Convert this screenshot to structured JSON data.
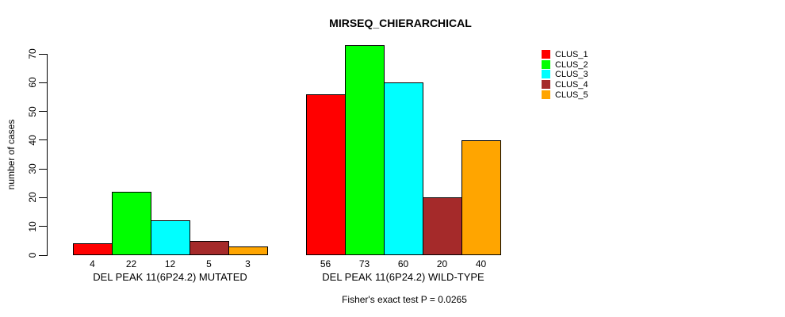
{
  "chart_data": {
    "type": "bar",
    "title": "MIRSEQ_CHIERARCHICAL",
    "subtitle": "Fisher's exact test P = 0.0265",
    "ylabel": "number of cases",
    "xlabel": "",
    "ylim": [
      0,
      70
    ],
    "yticks": [
      0,
      10,
      20,
      30,
      40,
      50,
      60,
      70
    ],
    "grid": false,
    "legend_position": "right",
    "bar_value_labels_shown": true,
    "categories": [
      "DEL PEAK 11(6P24.2) MUTATED",
      "DEL PEAK 11(6P24.2) WILD-TYPE"
    ],
    "series": [
      {
        "name": "CLUS_1",
        "color": "#FF0000",
        "values": [
          4,
          56
        ]
      },
      {
        "name": "CLUS_2",
        "color": "#00FF00",
        "values": [
          22,
          73
        ]
      },
      {
        "name": "CLUS_3",
        "color": "#00FFFF",
        "values": [
          12,
          60
        ]
      },
      {
        "name": "CLUS_4",
        "color": "#A52A2A",
        "values": [
          5,
          20
        ]
      },
      {
        "name": "CLUS_5",
        "color": "#FFA500",
        "values": [
          3,
          40
        ]
      }
    ]
  }
}
